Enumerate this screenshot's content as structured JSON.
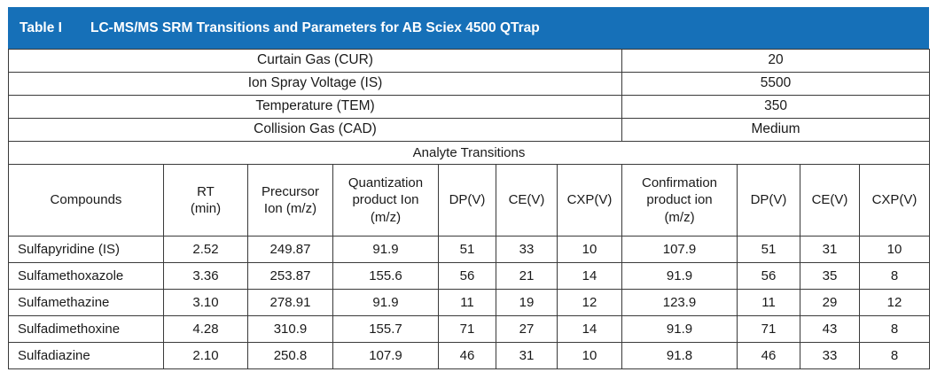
{
  "title": {
    "number": "Table I",
    "text": "LC-MS/MS SRM Transitions and Parameters for AB Sciex 4500 QTrap"
  },
  "params": [
    {
      "label": "Curtain Gas  (CUR)",
      "value": "20"
    },
    {
      "label": "Ion Spray Voltage (IS)",
      "value": "5500"
    },
    {
      "label": "Temperature (TEM)",
      "value": "350"
    },
    {
      "label": "Collision Gas (CAD)",
      "value": "Medium"
    }
  ],
  "section_label": "Analyte Transitions",
  "headers": [
    [
      "Compounds"
    ],
    [
      "RT",
      "(min)"
    ],
    [
      "Precursor",
      "Ion (m/z)"
    ],
    [
      "Quantization",
      "product Ion",
      "(m/z)"
    ],
    [
      "DP(V)"
    ],
    [
      "CE(V)"
    ],
    [
      "CXP(V)"
    ],
    [
      "Confirmation",
      "product ion",
      "(m/z)"
    ],
    [
      "DP(V)"
    ],
    [
      "CE(V)"
    ],
    [
      "CXP(V)"
    ]
  ],
  "rows": [
    [
      "Sulfapyridine (IS)",
      "2.52",
      "249.87",
      "91.9",
      "51",
      "33",
      "10",
      "107.9",
      "51",
      "31",
      "10"
    ],
    [
      "Sulfamethoxazole",
      "3.36",
      "253.87",
      "155.6",
      "56",
      "21",
      "14",
      "91.9",
      "56",
      "35",
      "8"
    ],
    [
      "Sulfamethazine",
      "3.10",
      "278.91",
      "91.9",
      "11",
      "19",
      "12",
      "123.9",
      "11",
      "29",
      "12"
    ],
    [
      "Sulfadimethoxine",
      "4.28",
      "310.9",
      "155.7",
      "71",
      "27",
      "14",
      "91.9",
      "71",
      "43",
      "8"
    ],
    [
      "Sulfadiazine",
      "2.10",
      "250.8",
      "107.9",
      "46",
      "31",
      "10",
      "91.8",
      "46",
      "33",
      "8"
    ]
  ]
}
